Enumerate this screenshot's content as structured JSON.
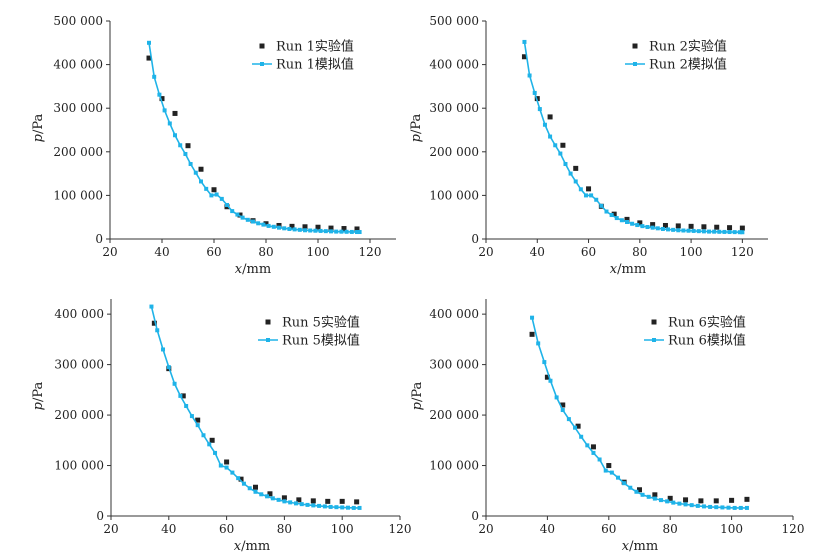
{
  "colors": {
    "experiment": "#222222",
    "simulation": "#1fb3e8"
  },
  "chart_data": [
    {
      "type": "scatter",
      "xlabel_italic": "x",
      "xlabel_unit": "/mm",
      "ylabel_italic": "p",
      "ylabel_unit": "/Pa",
      "xlim": [
        20,
        130
      ],
      "ylim": [
        0,
        500000
      ],
      "xticks": [
        20,
        40,
        60,
        80,
        100,
        120
      ],
      "xtick_labels": [
        "20",
        "40",
        "60",
        "80",
        "100",
        "120"
      ],
      "yticks": [
        0,
        100000,
        200000,
        300000,
        400000,
        500000
      ],
      "ytick_labels": [
        "0",
        "100 000",
        "200 000",
        "300 000",
        "400 000",
        "500 000"
      ],
      "legend_position": "top-right",
      "series": [
        {
          "name": "Run 1实验值",
          "kind": "experiment",
          "x": [
            35,
            40,
            45,
            50,
            55,
            60,
            65,
            70,
            75,
            80,
            85,
            90,
            95,
            100,
            105,
            110,
            115
          ],
          "y": [
            415000,
            322000,
            288000,
            214000,
            160000,
            113000,
            74000,
            55000,
            42000,
            35000,
            31000,
            29000,
            28000,
            27000,
            25000,
            24000,
            23000
          ]
        },
        {
          "name": "Run 1模拟值",
          "kind": "simulation",
          "x": [
            35,
            37,
            39,
            41,
            43,
            45,
            47,
            49,
            51,
            53,
            55,
            57,
            59,
            61,
            63,
            65,
            67,
            69,
            71,
            73,
            75,
            77,
            79,
            81,
            83,
            85,
            87,
            89,
            91,
            93,
            95,
            97,
            99,
            101,
            103,
            105,
            107,
            109,
            111,
            113,
            115,
            116
          ],
          "y": [
            450000,
            372000,
            331000,
            295000,
            265000,
            238000,
            215000,
            195000,
            172000,
            152000,
            132000,
            115000,
            100000,
            102000,
            92000,
            78000,
            64000,
            56000,
            49000,
            44000,
            40000,
            36000,
            33000,
            30000,
            28000,
            26000,
            24500,
            23000,
            22000,
            21000,
            20000,
            19500,
            19000,
            18500,
            18000,
            17500,
            17000,
            16800,
            16500,
            16200,
            16000,
            16000
          ]
        }
      ]
    },
    {
      "type": "scatter",
      "xlabel_italic": "x",
      "xlabel_unit": "/mm",
      "ylabel_italic": "p",
      "ylabel_unit": "/Pa",
      "xlim": [
        20,
        130
      ],
      "ylim": [
        0,
        500000
      ],
      "xticks": [
        20,
        40,
        60,
        80,
        100,
        120
      ],
      "xtick_labels": [
        "20",
        "40",
        "60",
        "80",
        "100",
        "120"
      ],
      "yticks": [
        0,
        100000,
        200000,
        300000,
        400000,
        500000
      ],
      "ytick_labels": [
        "0",
        "100 000",
        "200 000",
        "300 000",
        "400 000",
        "500 000"
      ],
      "legend_position": "top-right",
      "series": [
        {
          "name": "Run 2实验值",
          "kind": "experiment",
          "x": [
            35,
            40,
            45,
            50,
            55,
            60,
            65,
            70,
            75,
            80,
            85,
            90,
            95,
            100,
            105,
            110,
            115,
            120
          ],
          "y": [
            418000,
            322000,
            280000,
            215000,
            162000,
            115000,
            75000,
            57000,
            45000,
            37000,
            33000,
            31000,
            30000,
            29000,
            28000,
            27000,
            26000,
            25000
          ]
        },
        {
          "name": "Run 2模拟值",
          "kind": "simulation",
          "x": [
            35,
            37,
            39,
            41,
            43,
            45,
            47,
            49,
            51,
            53,
            55,
            57,
            59,
            61,
            63,
            65,
            67,
            69,
            71,
            73,
            75,
            77,
            79,
            81,
            83,
            85,
            87,
            89,
            91,
            93,
            95,
            97,
            99,
            101,
            103,
            105,
            107,
            109,
            111,
            113,
            115,
            117,
            119,
            120
          ],
          "y": [
            452000,
            375000,
            335000,
            298000,
            262000,
            235000,
            215000,
            196000,
            172000,
            150000,
            132000,
            114000,
            100000,
            100000,
            90000,
            76000,
            63000,
            55000,
            48000,
            43000,
            39000,
            35000,
            32000,
            29500,
            27500,
            26000,
            24500,
            23000,
            22000,
            21000,
            20000,
            19500,
            19000,
            18500,
            18000,
            17500,
            17000,
            16800,
            16500,
            16200,
            16000,
            15800,
            15600,
            15500
          ]
        }
      ]
    },
    {
      "type": "scatter",
      "xlabel_italic": "x",
      "xlabel_unit": "/mm",
      "ylabel_italic": "p",
      "ylabel_unit": "/Pa",
      "xlim": [
        20,
        120
      ],
      "ylim": [
        0,
        430000
      ],
      "xticks": [
        20,
        40,
        60,
        80,
        100,
        120
      ],
      "xtick_labels": [
        "20",
        "40",
        "60",
        "80",
        "100",
        "120"
      ],
      "yticks": [
        0,
        100000,
        200000,
        300000,
        400000
      ],
      "ytick_labels": [
        "0",
        "100 000",
        "200 000",
        "300 000",
        "400 000"
      ],
      "legend_position": "top-right",
      "series": [
        {
          "name": "Run 5实验值",
          "kind": "experiment",
          "x": [
            35,
            40,
            45,
            50,
            55,
            60,
            65,
            70,
            75,
            80,
            85,
            90,
            95,
            100,
            105
          ],
          "y": [
            382000,
            292000,
            238000,
            190000,
            150000,
            107000,
            73000,
            57000,
            44000,
            36000,
            32000,
            30000,
            29000,
            29000,
            28000
          ]
        },
        {
          "name": "Run 5模拟值",
          "kind": "simulation",
          "x": [
            34,
            36,
            38,
            40,
            42,
            44,
            46,
            48,
            50,
            52,
            54,
            56,
            58,
            60,
            62,
            64,
            66,
            68,
            70,
            72,
            74,
            76,
            78,
            80,
            82,
            84,
            86,
            88,
            90,
            92,
            94,
            96,
            98,
            100,
            102,
            104,
            106
          ],
          "y": [
            415000,
            368000,
            330000,
            295000,
            262000,
            238000,
            218000,
            198000,
            180000,
            160000,
            142000,
            125000,
            100000,
            96000,
            86000,
            75000,
            64000,
            55000,
            48000,
            43000,
            39000,
            35000,
            32000,
            29000,
            27000,
            25000,
            23500,
            22000,
            21000,
            20000,
            19000,
            18000,
            17500,
            17000,
            16500,
            16000,
            16000
          ]
        }
      ]
    },
    {
      "type": "scatter",
      "xlabel_italic": "x",
      "xlabel_unit": "/mm",
      "ylabel_italic": "p",
      "ylabel_unit": "/Pa",
      "xlim": [
        20,
        120
      ],
      "ylim": [
        0,
        430000
      ],
      "xticks": [
        20,
        40,
        60,
        80,
        100,
        120
      ],
      "xtick_labels": [
        "20",
        "40",
        "60",
        "80",
        "100",
        "120"
      ],
      "yticks": [
        0,
        100000,
        200000,
        300000,
        400000
      ],
      "ytick_labels": [
        "0",
        "100 000",
        "200 000",
        "300 000",
        "400 000"
      ],
      "legend_position": "top-right",
      "series": [
        {
          "name": "Run 6实验值",
          "kind": "experiment",
          "x": [
            35,
            40,
            45,
            50,
            55,
            60,
            65,
            70,
            75,
            80,
            85,
            90,
            95,
            100,
            105
          ],
          "y": [
            360000,
            275000,
            220000,
            178000,
            137000,
            100000,
            67000,
            52000,
            42000,
            35000,
            32000,
            30000,
            30000,
            31000,
            33000
          ]
        },
        {
          "name": "Run 6模拟值",
          "kind": "simulation",
          "x": [
            35,
            37,
            39,
            41,
            43,
            45,
            47,
            49,
            51,
            53,
            55,
            57,
            59,
            61,
            63,
            65,
            67,
            69,
            71,
            73,
            75,
            77,
            79,
            81,
            83,
            85,
            87,
            89,
            91,
            93,
            95,
            97,
            99,
            101,
            103,
            105
          ],
          "y": [
            393000,
            342000,
            305000,
            268000,
            235000,
            210000,
            192000,
            175000,
            157000,
            140000,
            125000,
            112000,
            90000,
            86000,
            76000,
            65000,
            56000,
            48000,
            42000,
            38000,
            34500,
            31500,
            29000,
            26500,
            24500,
            23000,
            21500,
            20000,
            19000,
            18000,
            17500,
            17000,
            16500,
            16000,
            16000,
            16000
          ]
        }
      ]
    }
  ]
}
